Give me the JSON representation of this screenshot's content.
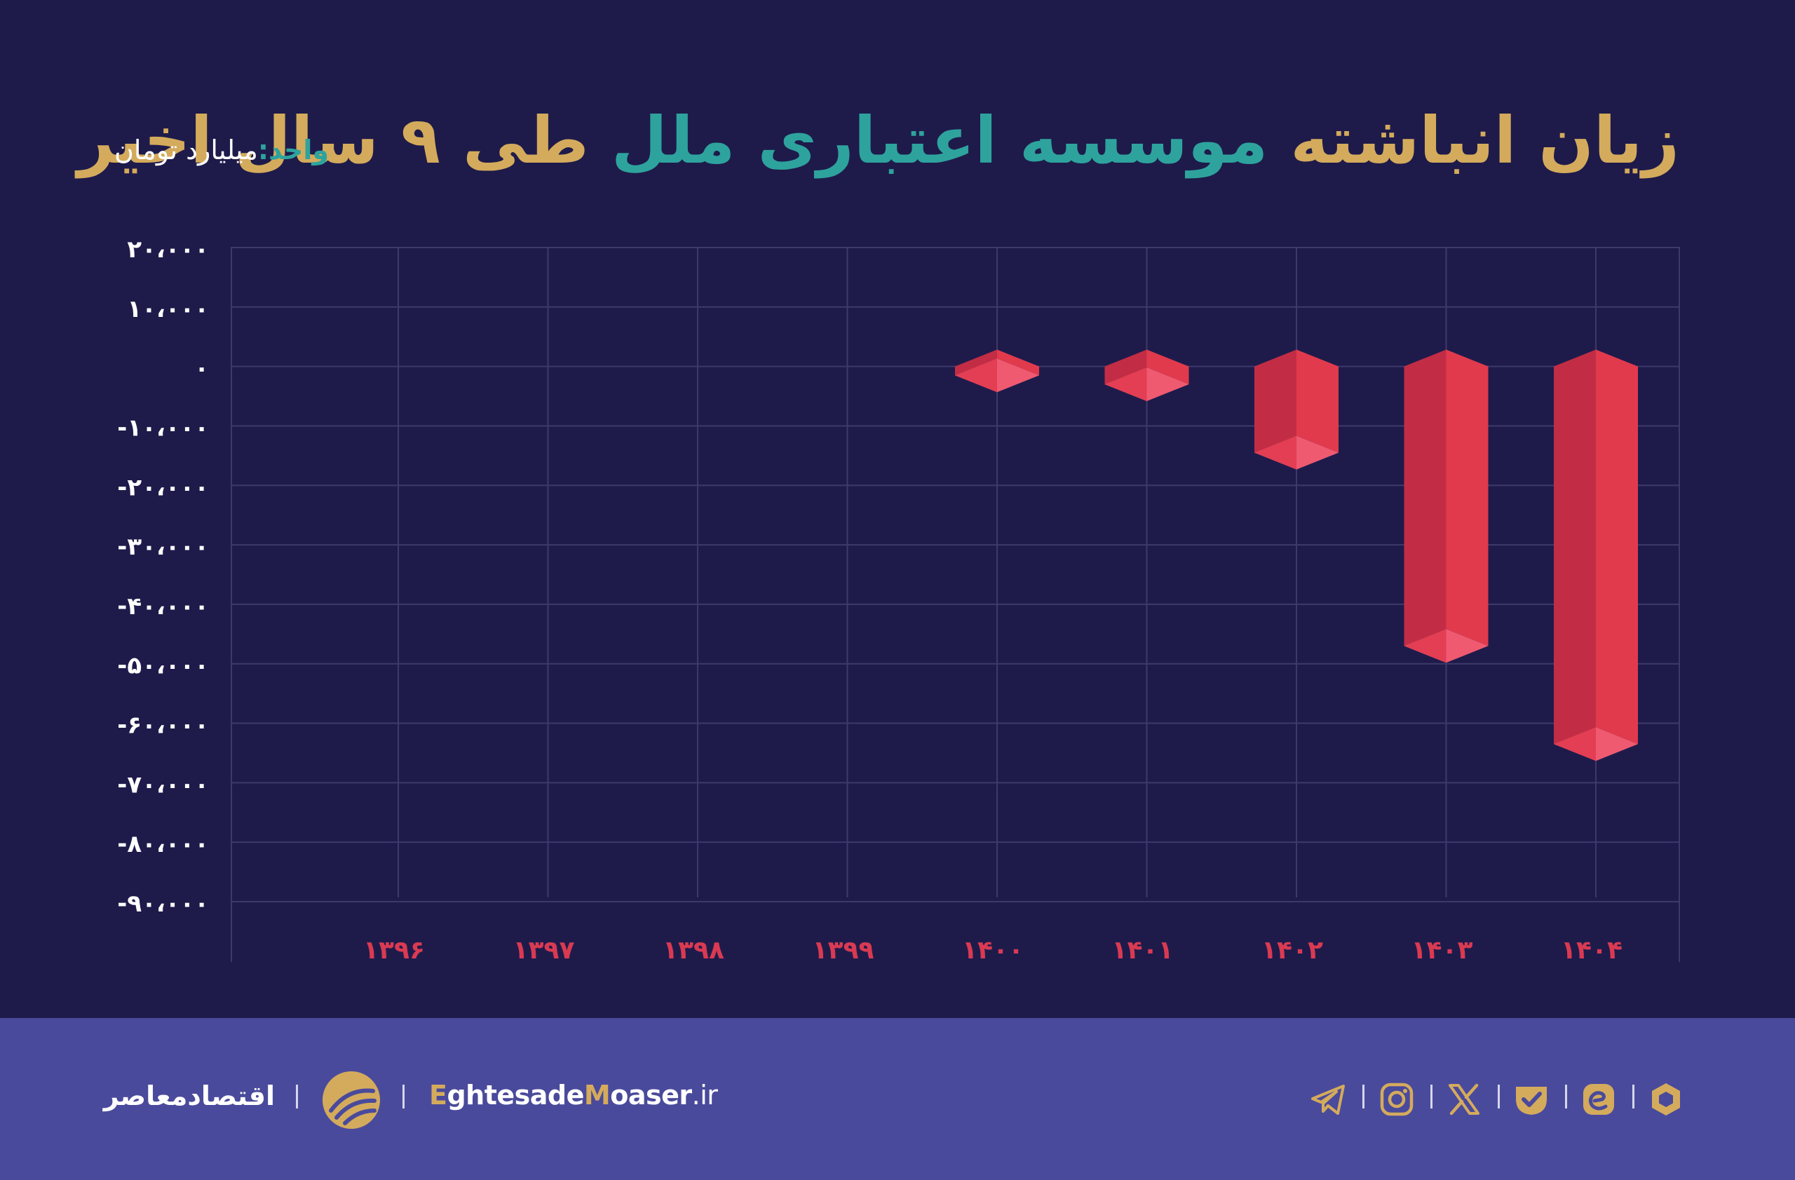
{
  "title": {
    "part1": "زیان انباشته",
    "part2": "موسسه اعتباری ملل",
    "part3": "طی ۹ سال اخیر"
  },
  "unit": {
    "label": "واحد:",
    "value": "میلیارد تومان"
  },
  "chart_data": {
    "type": "bar",
    "title": "زیان انباشته موسسه اعتباری ملل طی ۹ سال اخیر",
    "unit": "میلیارد تومان",
    "categories": [
      "۱۳۹۶",
      "۱۳۹۷",
      "۱۳۹۸",
      "۱۳۹۹",
      "۱۴۰۰",
      "۱۴۰۱",
      "۱۴۰۲",
      "۱۴۰۳",
      "۱۴۰۴"
    ],
    "values": [
      null,
      null,
      null,
      null,
      -1500,
      -3000,
      -14500,
      -47000,
      -63500
    ],
    "yticks": [
      20000,
      10000,
      0,
      -10000,
      -20000,
      -30000,
      -40000,
      -50000,
      -60000,
      -70000,
      -80000,
      -90000
    ],
    "ytick_labels": [
      "۲۰،۰۰۰",
      "۱۰،۰۰۰",
      "۰",
      "-۱۰،۰۰۰",
      "-۲۰،۰۰۰",
      "-۳۰،۰۰۰",
      "-۴۰،۰۰۰",
      "-۵۰،۰۰۰",
      "-۶۰،۰۰۰",
      "-۷۰،۰۰۰",
      "-۸۰،۰۰۰",
      "-۹۰،۰۰۰"
    ],
    "ylim": [
      -90000,
      20000
    ],
    "grid": true,
    "colors": {
      "bar_dark": "#c22d45",
      "bar_light": "#e13a4d",
      "bar_cap": "#ef5a71",
      "grid": "#3d3a6b",
      "tick": "#ffffff",
      "category": "#d93a52"
    }
  },
  "footer": {
    "brand_fa": "اقتصادمعاصر",
    "site_e": "E",
    "site_mid1": "ghtesade",
    "site_m": "M",
    "site_mid2": "oaser",
    "site_tld": ".ir",
    "icons": [
      "telegram-icon",
      "instagram-icon",
      "x-icon",
      "eitaa-icon",
      "bale-icon",
      "rubika-icon"
    ],
    "colors": {
      "background": "#4a4a9c",
      "accent": "#d4ab5c"
    }
  }
}
